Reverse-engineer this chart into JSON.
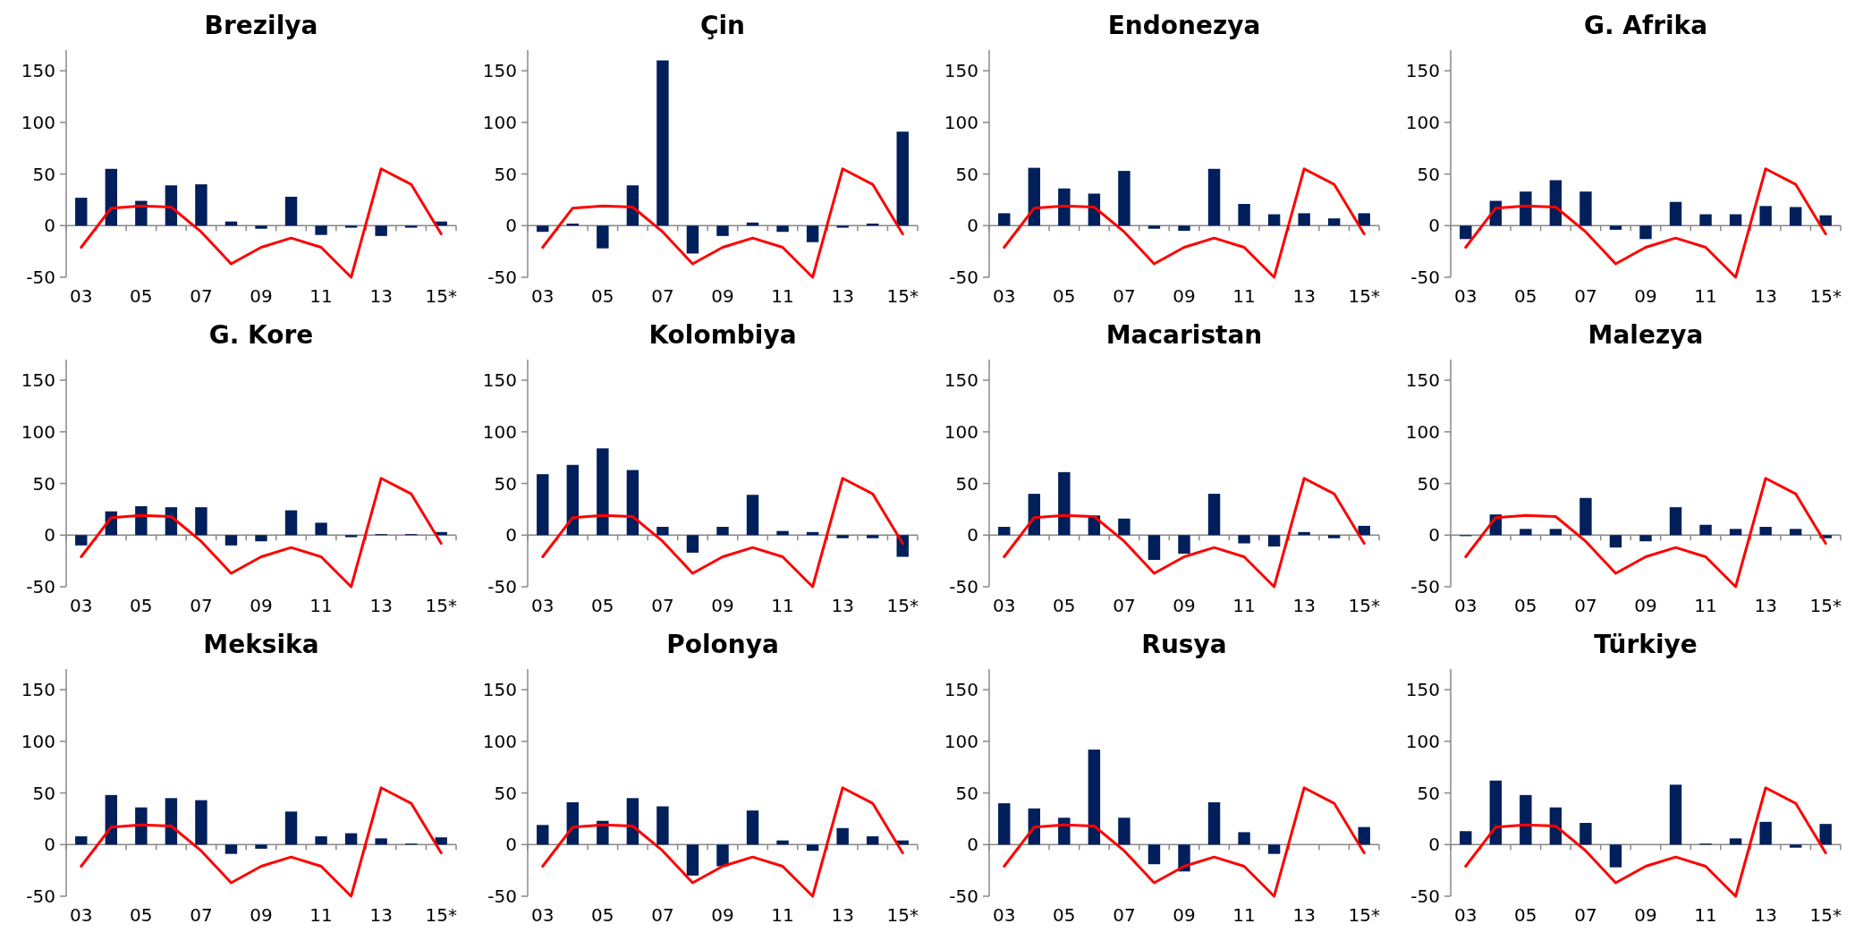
{
  "chart_data": [
    {
      "type": "bar",
      "title": "Brezilya",
      "categories": [
        "03",
        null,
        "05",
        null,
        "07",
        null,
        "09",
        null,
        "11",
        null,
        "13",
        null,
        "15*"
      ],
      "ylim": [
        -50,
        170
      ],
      "yticks": [
        -50,
        0,
        50,
        100,
        150
      ],
      "series": [
        {
          "color": "#001f5b",
          "values": [
            27,
            55,
            24,
            39,
            40,
            4,
            -3,
            28,
            -9,
            -2,
            -10,
            -2,
            4
          ]
        },
        {
          "type": "line",
          "color": "#ff0000",
          "values": [
            -21,
            17,
            19,
            18,
            -6,
            -37,
            -21,
            -12,
            -21,
            -50,
            55,
            40,
            -8
          ]
        }
      ]
    },
    {
      "type": "bar",
      "title": "Çin",
      "categories": [
        "03",
        null,
        "05",
        null,
        "07",
        null,
        "09",
        null,
        "11",
        null,
        "13",
        null,
        "15*"
      ],
      "ylim": [
        -50,
        170
      ],
      "yticks": [
        -50,
        0,
        50,
        100,
        150
      ],
      "series": [
        {
          "color": "#001f5b",
          "values": [
            -6,
            2,
            -22,
            39,
            160,
            -27,
            -10,
            3,
            -6,
            -16,
            -2,
            2,
            91
          ]
        },
        {
          "type": "line",
          "color": "#ff0000",
          "values": [
            -21,
            17,
            19,
            18,
            -6,
            -37,
            -21,
            -12,
            -21,
            -50,
            55,
            40,
            -8
          ]
        }
      ]
    },
    {
      "type": "bar",
      "title": "Endonezya",
      "categories": [
        "03",
        null,
        "05",
        null,
        "07",
        null,
        "09",
        null,
        "11",
        null,
        "13",
        null,
        "15*"
      ],
      "ylim": [
        -50,
        170
      ],
      "yticks": [
        -50,
        0,
        50,
        100,
        150
      ],
      "series": [
        {
          "color": "#001f5b",
          "values": [
            12,
            56,
            36,
            31,
            53,
            -3,
            -5,
            55,
            21,
            11,
            12,
            7,
            12
          ]
        },
        {
          "type": "line",
          "color": "#ff0000",
          "values": [
            -21,
            17,
            19,
            18,
            -6,
            -37,
            -21,
            -12,
            -21,
            -50,
            55,
            40,
            -8
          ]
        }
      ]
    },
    {
      "type": "bar",
      "title": "G. Afrika",
      "categories": [
        "03",
        null,
        "05",
        null,
        "07",
        null,
        "09",
        null,
        "11",
        null,
        "13",
        null,
        "15*"
      ],
      "ylim": [
        -50,
        170
      ],
      "yticks": [
        -50,
        0,
        50,
        100,
        150
      ],
      "series": [
        {
          "color": "#001f5b",
          "values": [
            -13,
            24,
            33,
            44,
            33,
            -4,
            -13,
            23,
            11,
            11,
            19,
            18,
            10
          ]
        },
        {
          "type": "line",
          "color": "#ff0000",
          "values": [
            -21,
            17,
            19,
            18,
            -6,
            -37,
            -21,
            -12,
            -21,
            -50,
            55,
            40,
            -8
          ]
        }
      ]
    },
    {
      "type": "bar",
      "title": "G. Kore",
      "categories": [
        "03",
        null,
        "05",
        null,
        "07",
        null,
        "09",
        null,
        "11",
        null,
        "13",
        null,
        "15*"
      ],
      "ylim": [
        -50,
        170
      ],
      "yticks": [
        -50,
        0,
        50,
        100,
        150
      ],
      "series": [
        {
          "color": "#001f5b",
          "values": [
            -10,
            23,
            28,
            27,
            27,
            -10,
            -6,
            24,
            12,
            -2,
            1,
            1,
            3
          ]
        },
        {
          "type": "line",
          "color": "#ff0000",
          "values": [
            -21,
            17,
            19,
            18,
            -6,
            -37,
            -21,
            -12,
            -21,
            -50,
            55,
            40,
            -8
          ]
        }
      ]
    },
    {
      "type": "bar",
      "title": "Kolombiya",
      "categories": [
        "03",
        null,
        "05",
        null,
        "07",
        null,
        "09",
        null,
        "11",
        null,
        "13",
        null,
        "15*"
      ],
      "ylim": [
        -50,
        170
      ],
      "yticks": [
        -50,
        0,
        50,
        100,
        150
      ],
      "series": [
        {
          "color": "#001f5b",
          "values": [
            59,
            68,
            84,
            63,
            8,
            -17,
            8,
            39,
            4,
            3,
            -3,
            -3,
            -21
          ]
        },
        {
          "type": "line",
          "color": "#ff0000",
          "values": [
            -21,
            17,
            19,
            18,
            -6,
            -37,
            -21,
            -12,
            -21,
            -50,
            55,
            40,
            -8
          ]
        }
      ]
    },
    {
      "type": "bar",
      "title": "Macaristan",
      "categories": [
        "03",
        null,
        "05",
        null,
        "07",
        null,
        "09",
        null,
        "11",
        null,
        "13",
        null,
        "15*"
      ],
      "ylim": [
        -50,
        170
      ],
      "yticks": [
        -50,
        0,
        50,
        100,
        150
      ],
      "series": [
        {
          "color": "#001f5b",
          "values": [
            8,
            40,
            61,
            19,
            16,
            -24,
            -18,
            40,
            -8,
            -11,
            3,
            -3,
            9
          ]
        },
        {
          "type": "line",
          "color": "#ff0000",
          "values": [
            -21,
            17,
            19,
            18,
            -6,
            -37,
            -21,
            -12,
            -21,
            -50,
            55,
            40,
            -8
          ]
        }
      ]
    },
    {
      "type": "bar",
      "title": "Malezya",
      "categories": [
        "03",
        null,
        "05",
        null,
        "07",
        null,
        "09",
        null,
        "11",
        null,
        "13",
        null,
        "15*"
      ],
      "ylim": [
        -50,
        170
      ],
      "yticks": [
        -50,
        0,
        50,
        100,
        150
      ],
      "series": [
        {
          "color": "#001f5b",
          "values": [
            -1,
            20,
            6,
            6,
            36,
            -12,
            -6,
            27,
            10,
            6,
            8,
            6,
            -3
          ]
        },
        {
          "type": "line",
          "color": "#ff0000",
          "values": [
            -21,
            17,
            19,
            18,
            -6,
            -37,
            -21,
            -12,
            -21,
            -50,
            55,
            40,
            -8
          ]
        }
      ]
    },
    {
      "type": "bar",
      "title": "Meksika",
      "categories": [
        "03",
        null,
        "05",
        null,
        "07",
        null,
        "09",
        null,
        "11",
        null,
        "13",
        null,
        "15*"
      ],
      "ylim": [
        -50,
        170
      ],
      "yticks": [
        -50,
        0,
        50,
        100,
        150
      ],
      "series": [
        {
          "color": "#001f5b",
          "values": [
            8,
            48,
            36,
            45,
            43,
            -9,
            -4,
            32,
            8,
            11,
            6,
            1,
            7
          ]
        },
        {
          "type": "line",
          "color": "#ff0000",
          "values": [
            -21,
            17,
            19,
            18,
            -6,
            -37,
            -21,
            -12,
            -21,
            -50,
            55,
            40,
            -8
          ]
        }
      ]
    },
    {
      "type": "bar",
      "title": "Polonya",
      "categories": [
        "03",
        null,
        "05",
        null,
        "07",
        null,
        "09",
        null,
        "11",
        null,
        "13",
        null,
        "15*"
      ],
      "ylim": [
        -50,
        170
      ],
      "yticks": [
        -50,
        0,
        50,
        100,
        150
      ],
      "series": [
        {
          "color": "#001f5b",
          "values": [
            19,
            41,
            23,
            45,
            37,
            -30,
            -21,
            33,
            4,
            -6,
            16,
            8,
            4
          ]
        },
        {
          "type": "line",
          "color": "#ff0000",
          "values": [
            -21,
            17,
            19,
            18,
            -6,
            -37,
            -21,
            -12,
            -21,
            -50,
            55,
            40,
            -8
          ]
        }
      ]
    },
    {
      "type": "bar",
      "title": "Rusya",
      "categories": [
        "03",
        null,
        "05",
        null,
        "07",
        null,
        "09",
        null,
        "11",
        null,
        "13",
        null,
        "15*"
      ],
      "ylim": [
        -50,
        170
      ],
      "yticks": [
        -50,
        0,
        50,
        100,
        150
      ],
      "series": [
        {
          "color": "#001f5b",
          "values": [
            40,
            35,
            26,
            92,
            26,
            -19,
            -26,
            41,
            12,
            -9,
            0,
            0,
            17
          ]
        },
        {
          "type": "line",
          "color": "#ff0000",
          "values": [
            -21,
            17,
            19,
            18,
            -6,
            -37,
            -21,
            -12,
            -21,
            -50,
            55,
            40,
            -8
          ]
        }
      ]
    },
    {
      "type": "bar",
      "title": "Türkiye",
      "categories": [
        "03",
        null,
        "05",
        null,
        "07",
        null,
        "09",
        null,
        "11",
        null,
        "13",
        null,
        "15*"
      ],
      "ylim": [
        -50,
        170
      ],
      "yticks": [
        -50,
        0,
        50,
        100,
        150
      ],
      "series": [
        {
          "color": "#001f5b",
          "values": [
            13,
            62,
            48,
            36,
            21,
            -22,
            0,
            58,
            1,
            6,
            22,
            -3,
            20
          ]
        },
        {
          "type": "line",
          "color": "#ff0000",
          "values": [
            -21,
            17,
            19,
            18,
            -6,
            -37,
            -21,
            -12,
            -21,
            -50,
            55,
            40,
            -8
          ]
        }
      ]
    }
  ]
}
